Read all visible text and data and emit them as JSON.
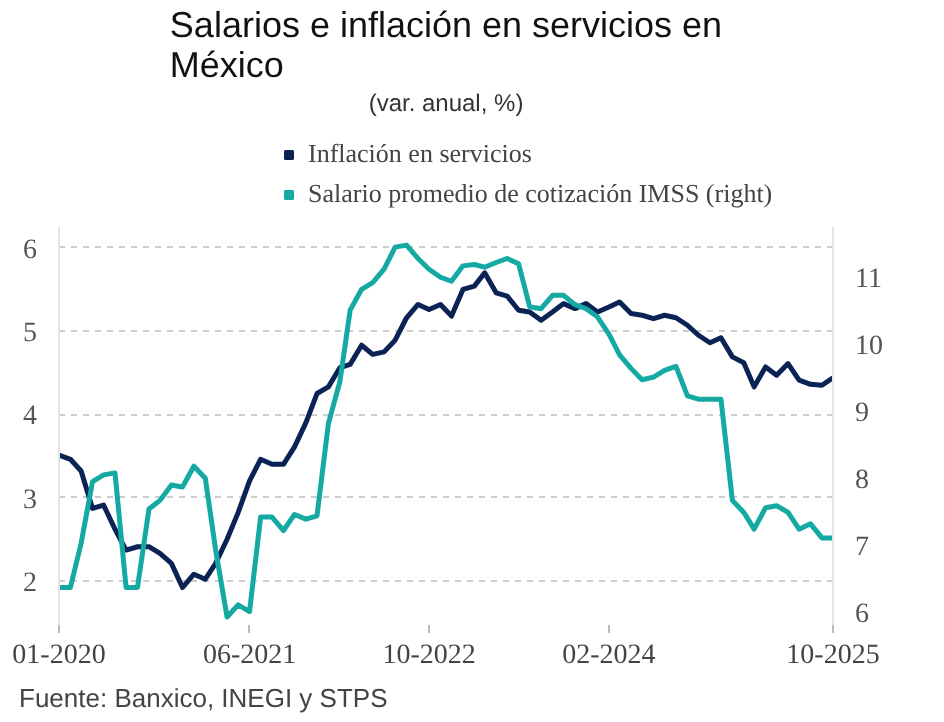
{
  "chart_data": {
    "type": "line",
    "title": "Salarios e inflación en servicios en México",
    "subtitle": "(var. anual, %)",
    "x": [
      "2020-01",
      "2020-02",
      "2020-03",
      "2020-04",
      "2020-05",
      "2020-06",
      "2020-07",
      "2020-08",
      "2020-09",
      "2020-10",
      "2020-11",
      "2020-12",
      "2021-01",
      "2021-02",
      "2021-03",
      "2021-04",
      "2021-05",
      "2021-06",
      "2021-07",
      "2021-08",
      "2021-09",
      "2021-10",
      "2021-11",
      "2021-12",
      "2022-01",
      "2022-02",
      "2022-03",
      "2022-04",
      "2022-05",
      "2022-06",
      "2022-07",
      "2022-08",
      "2022-09",
      "2022-10",
      "2022-11",
      "2022-12",
      "2023-01",
      "2023-02",
      "2023-03",
      "2023-04",
      "2023-05",
      "2023-06",
      "2023-07",
      "2023-08",
      "2023-09",
      "2023-10",
      "2023-11",
      "2023-12",
      "2024-01",
      "2024-02",
      "2024-03",
      "2024-04",
      "2024-05",
      "2024-06",
      "2024-07",
      "2024-08",
      "2024-09",
      "2024-10",
      "2024-11",
      "2024-12",
      "2025-01",
      "2025-02",
      "2025-03",
      "2025-04",
      "2025-05",
      "2025-06",
      "2025-07",
      "2025-08",
      "2025-09",
      "2025-10"
    ],
    "series": [
      {
        "name": "Inflación en servicios",
        "color": "#0b2354",
        "values": [
          3.51,
          3.46,
          3.32,
          2.87,
          2.91,
          2.62,
          2.37,
          2.41,
          2.41,
          2.33,
          2.21,
          1.92,
          2.08,
          2.02,
          2.21,
          2.5,
          2.82,
          3.2,
          3.46,
          3.4,
          3.4,
          3.61,
          3.9,
          4.25,
          4.33,
          4.56,
          4.6,
          4.83,
          4.72,
          4.75,
          4.89,
          5.16,
          5.32,
          5.26,
          5.32,
          5.18,
          5.5,
          5.54,
          5.7,
          5.46,
          5.42,
          5.25,
          5.23,
          5.13,
          5.23,
          5.33,
          5.27,
          5.33,
          5.23,
          5.29,
          5.35,
          5.21,
          5.19,
          5.15,
          5.19,
          5.16,
          5.07,
          4.95,
          4.86,
          4.92,
          4.69,
          4.62,
          4.33,
          4.57,
          4.47,
          4.61,
          4.41,
          4.36,
          4.35,
          4.44
        ]
      },
      {
        "name": "Salario promedio de cotización IMSS (right)",
        "color": "#14aaa3",
        "axis": "y2",
        "values": [
          6.36,
          6.36,
          7.02,
          7.94,
          8.04,
          8.07,
          6.36,
          6.36,
          7.53,
          7.66,
          7.89,
          7.86,
          8.17,
          7.99,
          6.92,
          5.92,
          6.1,
          6.0,
          7.41,
          7.41,
          7.21,
          7.45,
          7.38,
          7.43,
          8.81,
          9.43,
          10.5,
          10.81,
          10.91,
          11.11,
          11.44,
          11.47,
          11.27,
          11.11,
          10.99,
          10.93,
          11.16,
          11.18,
          11.14,
          11.21,
          11.27,
          11.19,
          10.55,
          10.52,
          10.72,
          10.72,
          10.58,
          10.52,
          10.4,
          10.14,
          9.83,
          9.63,
          9.46,
          9.5,
          9.6,
          9.66,
          9.22,
          9.17,
          9.17,
          9.17,
          7.66,
          7.48,
          7.23,
          7.55,
          7.58,
          7.48,
          7.23,
          7.31,
          7.1,
          7.1
        ]
      }
    ],
    "xlim": [
      "2020-01",
      "2025-10"
    ],
    "xticks": [
      {
        "value": "2020-01",
        "label": "01-2020"
      },
      {
        "value": "2021-06",
        "label": "06-2021"
      },
      {
        "value": "2022-10",
        "label": "10-2022"
      },
      {
        "value": "2024-02",
        "label": "02-2024"
      },
      {
        "value": "2025-10",
        "label": "10-2025"
      }
    ],
    "ylim": [
      1.47,
      6.25
    ],
    "yticks": [
      2,
      3,
      4,
      5,
      6
    ],
    "y2lim": [
      5.8,
      11.74
    ],
    "y2ticks": [
      6,
      7,
      8,
      9,
      10,
      11
    ],
    "grid": "y",
    "legend": "top",
    "marker": "none",
    "line_style": "solid",
    "annotations": [
      "Fuente: Banxico, INEGI y STPS"
    ]
  }
}
